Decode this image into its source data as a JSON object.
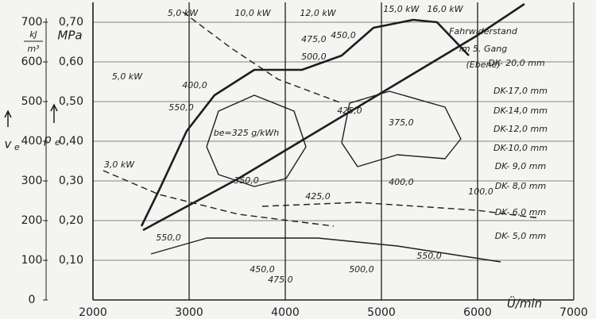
{
  "chart_data": {
    "type": "contour",
    "x_label": "Ü/min",
    "y_label": "p",
    "y_label_sub": "e",
    "y_unit": "MPa",
    "y2_label": "v",
    "y2_label_sub": "e",
    "y2_unit_num": "kJ",
    "y2_unit_den": "m³",
    "xlim": [
      2000,
      7000
    ],
    "xticks": [
      2000,
      3000,
      4000,
      5000,
      6000,
      7000
    ],
    "ylim": [
      0,
      0.75
    ],
    "yticks": [
      {
        "value": 0.1,
        "label": "0,10"
      },
      {
        "value": 0.2,
        "label": "0,20"
      },
      {
        "value": 0.3,
        "label": "0,30"
      },
      {
        "value": 0.4,
        "label": "0,40"
      },
      {
        "value": 0.5,
        "label": "0,50"
      },
      {
        "value": 0.6,
        "label": "0,60"
      },
      {
        "value": 0.7,
        "label": "0,70"
      }
    ],
    "y2lim": [
      0,
      750
    ],
    "y2ticks": [
      0,
      100,
      200,
      300,
      400,
      500,
      600,
      700
    ],
    "grid": true,
    "color": "#1e1e1e",
    "curves": [
      {
        "style": "thick",
        "x": [
          2504,
          2686,
          2975,
          3264,
          3678,
          4173,
          4587,
          4917,
          5330,
          5578,
          5909
        ],
        "y": [
          0.186,
          0.276,
          0.426,
          0.516,
          0.58,
          0.58,
          0.616,
          0.686,
          0.706,
          0.7,
          0.616
        ]
      },
      {
        "style": "thick",
        "x": [
          2521,
          3512,
          4339,
          5165,
          5992,
          6487
        ],
        "y": [
          0.176,
          0.306,
          0.426,
          0.546,
          0.666,
          0.746
        ]
      },
      {
        "style": "solid",
        "x": [
          3182,
          3306,
          3678,
          4091,
          4215,
          4008,
          3678,
          3306,
          3182
        ],
        "y": [
          0.386,
          0.476,
          0.516,
          0.476,
          0.386,
          0.306,
          0.286,
          0.316,
          0.386
        ]
      },
      {
        "style": "solid",
        "x": [
          4587,
          4669,
          5082,
          5661,
          5826,
          5661,
          5165,
          4752,
          4587
        ],
        "y": [
          0.396,
          0.496,
          0.526,
          0.486,
          0.406,
          0.356,
          0.366,
          0.336,
          0.396
        ]
      },
      {
        "style": "solid",
        "x": [
          2603,
          3182,
          4339,
          5165,
          6240
        ],
        "y": [
          0.116,
          0.156,
          0.156,
          0.136,
          0.096
        ]
      },
      {
        "style": "dashed",
        "x": [
          2934,
          3430,
          3926,
          4587
        ],
        "y": [
          0.726,
          0.636,
          0.556,
          0.496
        ]
      },
      {
        "style": "dashed",
        "x": [
          2107,
          2686,
          3512,
          4504
        ],
        "y": [
          0.326,
          0.266,
          0.216,
          0.186
        ]
      },
      {
        "style": "dashed",
        "x": [
          3760,
          4752,
          5992,
          6653
        ],
        "y": [
          0.236,
          0.246,
          0.226,
          0.206
        ]
      }
    ],
    "annotations": [
      {
        "text": "5,0 kW",
        "x": 2934,
        "y": 0.722
      },
      {
        "text": "10,0 kW",
        "x": 3661,
        "y": 0.722
      },
      {
        "text": "12,0 kW",
        "x": 4339,
        "y": 0.722
      },
      {
        "text": "15,0 kW",
        "x": 5206,
        "y": 0.732
      },
      {
        "text": "16,0 kW",
        "x": 5661,
        "y": 0.732
      },
      {
        "text": "5,0 kW",
        "x": 2355,
        "y": 0.562
      },
      {
        "text": "3,0 kW",
        "x": 2273,
        "y": 0.34
      },
      {
        "text": "475,0",
        "x": 4297,
        "y": 0.656
      },
      {
        "text": "450,0",
        "x": 4603,
        "y": 0.666
      },
      {
        "text": "500,0",
        "x": 4297,
        "y": 0.612
      },
      {
        "text": "400,0",
        "x": 3058,
        "y": 0.54
      },
      {
        "text": "550,0",
        "x": 2917,
        "y": 0.484
      },
      {
        "text": "425,0",
        "x": 4669,
        "y": 0.476
      },
      {
        "text": "375,0",
        "x": 5206,
        "y": 0.446
      },
      {
        "text": "be=325 g/kWh",
        "x": 3595,
        "y": 0.42
      },
      {
        "text": "350,0",
        "x": 3595,
        "y": 0.3
      },
      {
        "text": "400,0",
        "x": 5206,
        "y": 0.296
      },
      {
        "text": "425,0",
        "x": 4339,
        "y": 0.26
      },
      {
        "text": "100,0",
        "x": 6033,
        "y": 0.272
      },
      {
        "text": "550,0",
        "x": 2785,
        "y": 0.156
      },
      {
        "text": "450,0",
        "x": 3760,
        "y": 0.076
      },
      {
        "text": "475,0",
        "x": 3950,
        "y": 0.05
      },
      {
        "text": "500,0",
        "x": 4793,
        "y": 0.076
      },
      {
        "text": "550,0",
        "x": 5496,
        "y": 0.11
      },
      {
        "text": "Fahrwiderstand",
        "x": 6058,
        "y": 0.676
      },
      {
        "text": "im 5. Gang",
        "x": 6058,
        "y": 0.632
      },
      {
        "text": "(Ebene)",
        "x": 6058,
        "y": 0.592
      },
      {
        "text": "DK- 20,0 mm",
        "x": 6405,
        "y": 0.596
      },
      {
        "text": "DK-17,0 mm",
        "x": 6446,
        "y": 0.526
      },
      {
        "text": "DK-14,0 mm",
        "x": 6446,
        "y": 0.476
      },
      {
        "text": "DK-12,0 mm",
        "x": 6446,
        "y": 0.43
      },
      {
        "text": "DK-10,0 mm",
        "x": 6446,
        "y": 0.382
      },
      {
        "text": "DK- 9,0 mm",
        "x": 6446,
        "y": 0.336
      },
      {
        "text": "DK- 8,0 mm",
        "x": 6446,
        "y": 0.286
      },
      {
        "text": "DK- 6,0 mm",
        "x": 6446,
        "y": 0.22
      },
      {
        "text": "DK- 5,0 mm",
        "x": 6446,
        "y": 0.16
      }
    ]
  }
}
